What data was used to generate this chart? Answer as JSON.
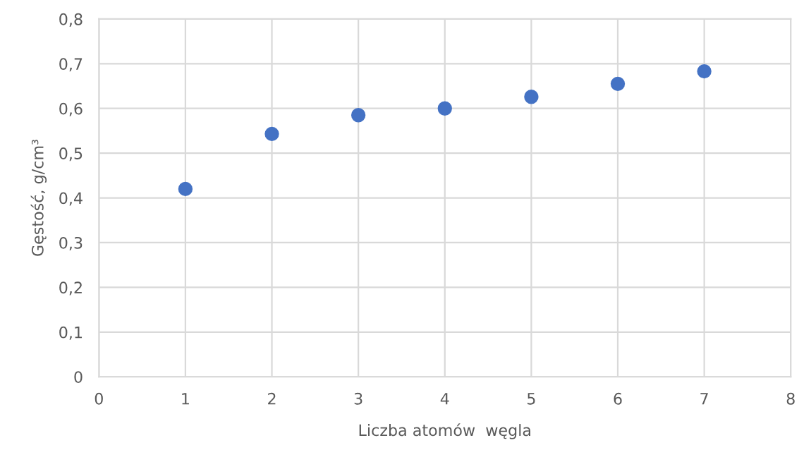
{
  "chart_data": {
    "type": "scatter",
    "xlabel": "Liczba atomów  węgla",
    "ylabel": "Gęstość, g/cm³",
    "x": [
      1,
      2,
      3,
      4,
      5,
      6,
      7
    ],
    "series": [
      {
        "color": "#4472c4",
        "values": [
          0.42,
          0.543,
          0.585,
          0.6,
          0.626,
          0.655,
          0.683
        ]
      }
    ],
    "xlim": [
      0,
      8
    ],
    "xticks": [
      0,
      1,
      2,
      3,
      4,
      5,
      6,
      7,
      8
    ],
    "ylim": [
      0,
      0.8
    ],
    "yticks": [
      0,
      {
        "value": 0.1,
        "label": "0,1"
      },
      {
        "value": 0.2,
        "label": "0,2"
      },
      {
        "value": 0.3,
        "label": "0,3"
      },
      {
        "value": 0.4,
        "label": "0,4"
      },
      {
        "value": 0.5,
        "label": "0,5"
      },
      {
        "value": 0.6,
        "label": "0,6"
      },
      {
        "value": 0.7,
        "label": "0,7"
      },
      {
        "value": 0.8,
        "label": "0,8"
      }
    ],
    "grid": true,
    "marker": "circle"
  }
}
